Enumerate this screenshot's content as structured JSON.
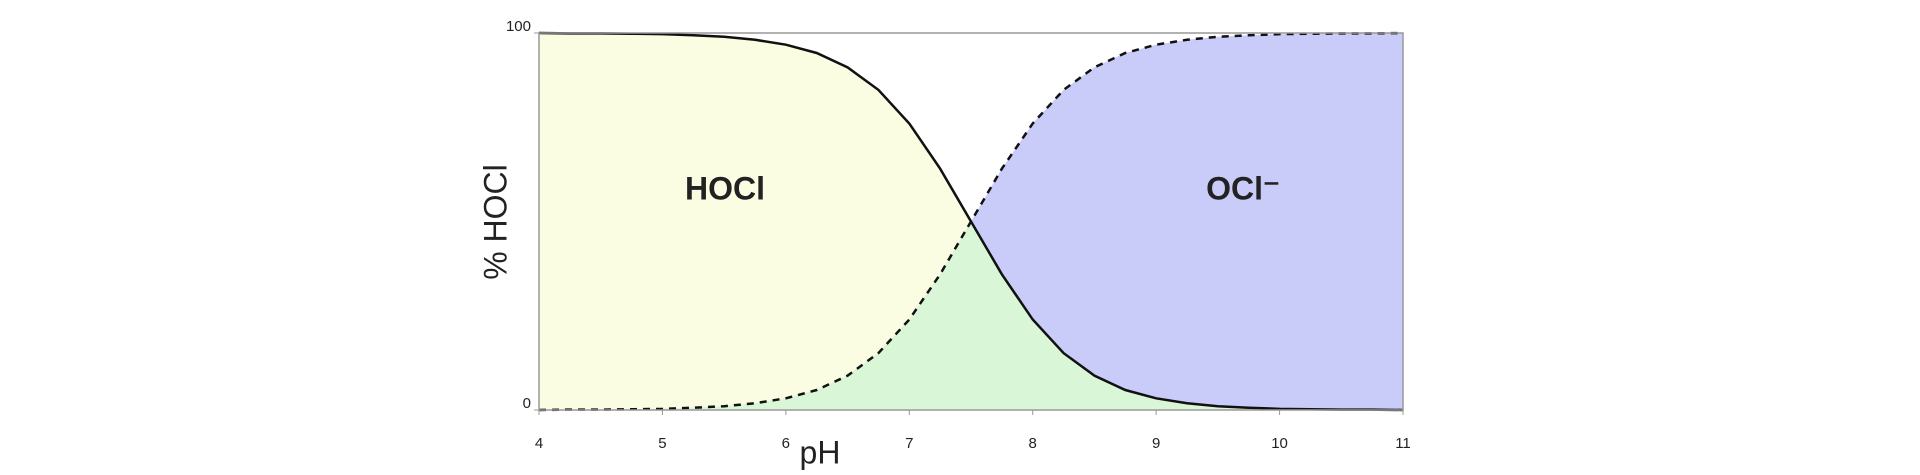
{
  "chart_data": {
    "type": "line",
    "x": [
      4,
      4.25,
      4.5,
      4.75,
      5,
      5.25,
      5.5,
      5.75,
      6,
      6.25,
      6.5,
      6.75,
      7,
      7.25,
      7.5,
      7.75,
      8,
      8.25,
      8.5,
      8.75,
      9,
      9.25,
      9.5,
      9.75,
      10,
      10.25,
      10.5,
      10.75,
      11
    ],
    "series": [
      {
        "name": "HOCl",
        "color": "#111111",
        "fill": "#fafde2",
        "dash": false,
        "values": [
          100,
          99.9,
          99.9,
          99.8,
          99.7,
          99.4,
          99,
          98.2,
          96.9,
          94.7,
          90.9,
          84.9,
          76,
          64,
          50,
          36,
          24,
          15.1,
          9.1,
          5.3,
          3.1,
          1.8,
          1,
          0.6,
          0.3,
          0.2,
          0.1,
          0.1,
          0
        ]
      },
      {
        "name": "OCl⁻",
        "color": "#111111",
        "fill": "#c9cbf8",
        "dash": true,
        "values": [
          0,
          0.1,
          0.1,
          0.2,
          0.3,
          0.6,
          1,
          1.8,
          3.1,
          5.3,
          9.1,
          15.1,
          24,
          36,
          50,
          64,
          76,
          84.9,
          90.9,
          94.7,
          96.9,
          98.2,
          99,
          99.4,
          99.7,
          99.8,
          99.9,
          99.9,
          100
        ]
      }
    ],
    "overlap_color": "#d9f7d7",
    "xlabel": "pH",
    "ylabel": "% HOCl",
    "xlim": [
      4,
      11
    ],
    "xticks": [
      4,
      5,
      6,
      7,
      8,
      9,
      10,
      11
    ],
    "ylim": [
      0,
      100
    ],
    "yticks": [
      0,
      100
    ]
  }
}
